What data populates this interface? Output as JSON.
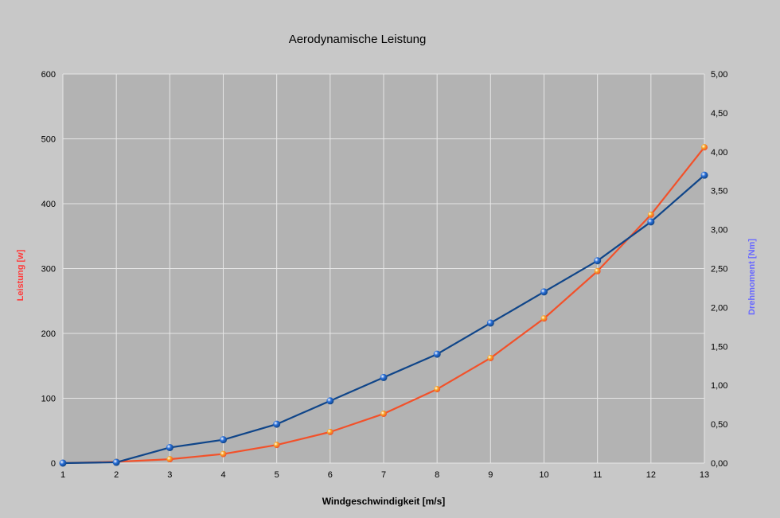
{
  "chart_data": {
    "type": "line",
    "title": "Aerodynamische Leistung",
    "xlabel": "Windgeschwindigkeit [m/s]",
    "ylabel": "Leistung [w]",
    "y2label": "Drehmoment [Nm]",
    "x": [
      1,
      2,
      3,
      4,
      5,
      6,
      7,
      8,
      9,
      10,
      11,
      12,
      13
    ],
    "x_tick_labels": [
      "1",
      "2",
      "3",
      "4",
      "5",
      "6",
      "7",
      "8",
      "9",
      "10",
      "11",
      "12",
      "13"
    ],
    "xlim": [
      1,
      13
    ],
    "ylim": [
      0,
      600
    ],
    "y_tick_labels": [
      "0",
      "100",
      "200",
      "300",
      "400",
      "500",
      "600"
    ],
    "y2lim": [
      0,
      5
    ],
    "y2_tick_labels": [
      "0,00",
      "0,50",
      "1,00",
      "1,50",
      "2,00",
      "2,50",
      "3,00",
      "3,50",
      "4,00",
      "4,50",
      "5,00"
    ],
    "grid": true,
    "legend": "none",
    "colors": {
      "background": "#c8c8c8",
      "plot_area": "#b3b3b3",
      "grid": "#e6e6e6",
      "left_axis_label": "#ff3b3b",
      "right_axis_label": "#6a6aff"
    },
    "series": [
      {
        "axis": "left",
        "color": "#f2512a",
        "marker_color": "#f6a623",
        "values": [
          0,
          2,
          6,
          14,
          28,
          48,
          76,
          114,
          162,
          223,
          296,
          383,
          487
        ]
      },
      {
        "axis": "right",
        "color": "#0f4589",
        "marker_color": "#2a6fd8",
        "values": [
          0,
          0.01,
          0.2,
          0.3,
          0.5,
          0.8,
          1.1,
          1.4,
          1.8,
          2.2,
          2.6,
          3.1,
          3.7
        ]
      }
    ]
  }
}
